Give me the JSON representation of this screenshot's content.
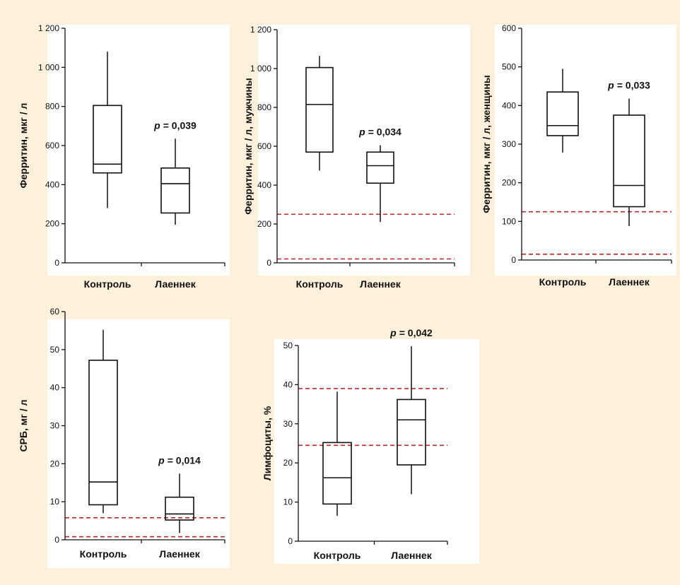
{
  "chart_data": [
    {
      "type": "box",
      "ylabel": "Ферритин, мкг / л",
      "categories": [
        "Контроль",
        "Лаеннек"
      ],
      "ylim": [
        0,
        1200
      ],
      "yticks": [
        0,
        200,
        400,
        600,
        800,
        1000,
        1200
      ],
      "ytick_labels": [
        "0",
        "200",
        "400",
        "600",
        "800",
        "1 000",
        "1 200"
      ],
      "boxes": [
        {
          "category": "Контроль",
          "min": 280,
          "q1": 460,
          "median": 505,
          "q3": 805,
          "max": 1080
        },
        {
          "category": "Лаеннек",
          "min": 195,
          "q1": 255,
          "median": 405,
          "q3": 485,
          "max": 635
        }
      ],
      "p_label": "p",
      "p_value": "= 0,039",
      "reference_lines": []
    },
    {
      "type": "box",
      "ylabel": "Ферритин, мкг / л, мужчины",
      "categories": [
        "Контроль",
        "Лаеннек"
      ],
      "ylim": [
        0,
        1200
      ],
      "yticks": [
        0,
        200,
        400,
        600,
        800,
        1000,
        1200
      ],
      "ytick_labels": [
        "0",
        "200",
        "400",
        "600",
        "800",
        "1 000",
        "1 200"
      ],
      "boxes": [
        {
          "category": "Контроль",
          "min": 475,
          "q1": 570,
          "median": 815,
          "q3": 1005,
          "max": 1065
        },
        {
          "category": "Лаеннек",
          "min": 210,
          "q1": 410,
          "median": 500,
          "q3": 570,
          "max": 605
        }
      ],
      "p_label": "p",
      "p_value": "= 0,034",
      "reference_lines": [
        20,
        250
      ]
    },
    {
      "type": "box",
      "ylabel": "Ферритин, мкг / л, женщины",
      "categories": [
        "Контроль",
        "Лаеннек"
      ],
      "ylim": [
        0,
        600
      ],
      "yticks": [
        0,
        100,
        200,
        300,
        400,
        500,
        600
      ],
      "ytick_labels": [
        "0",
        "100",
        "200",
        "300",
        "400",
        "500",
        "600"
      ],
      "boxes": [
        {
          "category": "Контроль",
          "min": 278,
          "q1": 322,
          "median": 348,
          "q3": 435,
          "max": 495
        },
        {
          "category": "Лаеннек",
          "min": 88,
          "q1": 138,
          "median": 193,
          "q3": 375,
          "max": 418
        }
      ],
      "p_label": "p",
      "p_value": "= 0,033",
      "reference_lines": [
        15,
        125
      ]
    },
    {
      "type": "box",
      "ylabel": "СРБ, мг / л",
      "categories": [
        "Контроль",
        "Лаеннек"
      ],
      "ylim": [
        0,
        60
      ],
      "yticks": [
        0,
        10,
        20,
        30,
        40,
        50,
        60
      ],
      "ytick_labels": [
        "0",
        "10",
        "20",
        "30",
        "40",
        "50",
        "60"
      ],
      "boxes": [
        {
          "category": "Контроль",
          "min": 7,
          "q1": 9.2,
          "median": 15.2,
          "q3": 47.2,
          "max": 55.2
        },
        {
          "category": "Лаеннек",
          "min": 1.8,
          "q1": 5.2,
          "median": 6.8,
          "q3": 11.2,
          "max": 17.4
        }
      ],
      "p_label": "p",
      "p_value": "= 0,014",
      "reference_lines": [
        0.8,
        5.8
      ]
    },
    {
      "type": "box",
      "ylabel": "Лимфоциты, %",
      "categories": [
        "Контроль",
        "Лаеннек"
      ],
      "ylim": [
        0,
        50
      ],
      "yticks": [
        0,
        10,
        20,
        30,
        40,
        50
      ],
      "ytick_labels": [
        "0",
        "10",
        "20",
        "30",
        "40",
        "50"
      ],
      "boxes": [
        {
          "category": "Контроль",
          "min": 6.5,
          "q1": 9.5,
          "median": 16.2,
          "q3": 25.2,
          "max": 38.2
        },
        {
          "category": "Лаеннек",
          "min": 12,
          "q1": 19.5,
          "median": 31,
          "q3": 36.2,
          "max": 49.8
        }
      ],
      "p_label": "p",
      "p_value": "= 0,042",
      "reference_lines": [
        24.5,
        39
      ]
    }
  ],
  "colors": {
    "background": "#fdf1dc",
    "plot_background": "#ffffff",
    "axis": "#111111",
    "reference_line": "#c0282a"
  }
}
